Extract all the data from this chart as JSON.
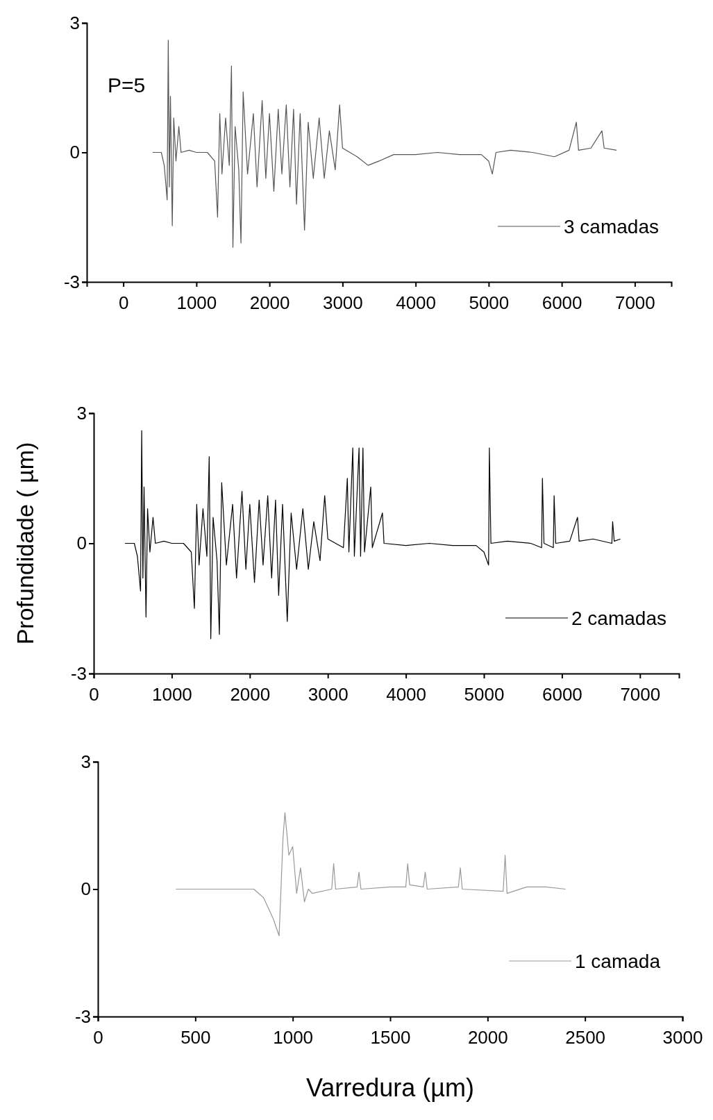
{
  "chart_data": [
    {
      "type": "line",
      "annotations": [
        "P=5"
      ],
      "xlim": [
        -500,
        7500
      ],
      "xticks": [
        0,
        1000,
        2000,
        3000,
        4000,
        5000,
        6000,
        7000
      ],
      "ylim": [
        -3,
        3
      ],
      "yticks": [
        -3,
        0,
        3
      ],
      "legend": "bottom right",
      "grid": false,
      "series": [
        {
          "name": "3 camadas",
          "color": "#555555",
          "x": [
            400,
            520,
            560,
            600,
            615,
            630,
            645,
            670,
            690,
            720,
            760,
            790,
            900,
            1000,
            1150,
            1250,
            1290,
            1320,
            1350,
            1400,
            1450,
            1480,
            1500,
            1530,
            1580,
            1610,
            1640,
            1700,
            1780,
            1830,
            1900,
            1950,
            2000,
            2060,
            2120,
            2170,
            2230,
            2280,
            2330,
            2370,
            2420,
            2480,
            2530,
            2600,
            2680,
            2750,
            2820,
            2900,
            2960,
            3000,
            3100,
            3200,
            3350,
            3500,
            3700,
            4000,
            4300,
            4600,
            4900,
            5000,
            5050,
            5100,
            5300,
            5600,
            5900,
            6100,
            6200,
            6230,
            6400,
            6550,
            6580,
            6750
          ],
          "values": [
            0,
            0,
            -0.3,
            -1.1,
            2.6,
            -0.8,
            1.3,
            -1.7,
            0.8,
            -0.2,
            0.6,
            0,
            0.05,
            0,
            0,
            -0.2,
            -1.5,
            0.9,
            -0.5,
            0.8,
            -0.3,
            2.0,
            -2.2,
            0.6,
            -0.4,
            -2.1,
            1.4,
            -0.5,
            0.9,
            -0.8,
            1.2,
            -0.6,
            0.9,
            -0.9,
            1.0,
            -0.5,
            1.1,
            -0.8,
            1.0,
            -1.2,
            0.9,
            -1.8,
            0.7,
            -0.6,
            0.8,
            -0.6,
            0.5,
            -0.4,
            1.1,
            0.1,
            0,
            -0.1,
            -0.3,
            -0.2,
            -0.05,
            -0.05,
            0,
            -0.05,
            -0.05,
            -0.2,
            -0.5,
            0,
            0.05,
            0,
            -0.1,
            0.05,
            0.7,
            0.05,
            0.1,
            0.5,
            0.1,
            0.05
          ]
        }
      ]
    },
    {
      "type": "line",
      "ylabel": "Profundidade ( µm)",
      "xlim": [
        0,
        7500
      ],
      "xticks": [
        0,
        1000,
        2000,
        3000,
        4000,
        5000,
        6000,
        7000
      ],
      "ylim": [
        -3,
        3
      ],
      "yticks": [
        -3,
        0,
        3
      ],
      "legend": "bottom right",
      "grid": false,
      "series": [
        {
          "name": "2 camadas",
          "color": "#000000",
          "x": [
            400,
            520,
            560,
            600,
            615,
            630,
            645,
            670,
            690,
            720,
            760,
            790,
            900,
            1000,
            1150,
            1250,
            1290,
            1320,
            1350,
            1400,
            1450,
            1480,
            1500,
            1530,
            1580,
            1610,
            1640,
            1700,
            1780,
            1830,
            1900,
            1950,
            2000,
            2060,
            2120,
            2170,
            2230,
            2280,
            2330,
            2370,
            2420,
            2480,
            2530,
            2600,
            2680,
            2750,
            2820,
            2900,
            2960,
            3000,
            3100,
            3200,
            3250,
            3270,
            3320,
            3340,
            3400,
            3420,
            3450,
            3470,
            3550,
            3570,
            3700,
            3720,
            4000,
            4300,
            4600,
            4900,
            5000,
            5060,
            5070,
            5090,
            5300,
            5600,
            5740,
            5750,
            5770,
            5890,
            5900,
            5920,
            6100,
            6200,
            6220,
            6400,
            6640,
            6650,
            6670,
            6750
          ],
          "values": [
            0,
            0,
            -0.3,
            -1.1,
            2.6,
            -0.8,
            1.3,
            -1.7,
            0.8,
            -0.2,
            0.6,
            0,
            0.05,
            0,
            0,
            -0.2,
            -1.5,
            0.9,
            -0.5,
            0.8,
            -0.3,
            2.0,
            -2.2,
            0.6,
            -0.4,
            -2.1,
            1.4,
            -0.5,
            0.9,
            -0.8,
            1.2,
            -0.6,
            0.9,
            -0.9,
            1.0,
            -0.5,
            1.1,
            -0.8,
            1.0,
            -1.2,
            0.9,
            -1.8,
            0.7,
            -0.6,
            0.8,
            -0.6,
            0.5,
            -0.4,
            1.1,
            0.1,
            0,
            -0.1,
            1.5,
            -0.2,
            2.2,
            -0.3,
            2.2,
            -0.3,
            2.2,
            -0.2,
            1.3,
            -0.1,
            0.7,
            0,
            -0.05,
            0,
            -0.05,
            -0.05,
            -0.2,
            -0.5,
            2.2,
            0,
            0.05,
            0,
            -0.1,
            1.5,
            0,
            -0.1,
            1.1,
            0,
            0.05,
            0.6,
            0.05,
            0.1,
            0,
            0.5,
            0.05,
            0.1
          ]
        }
      ]
    },
    {
      "type": "line",
      "xlabel": "Varredura (µm)",
      "xlim": [
        0,
        3000
      ],
      "xticks": [
        0,
        500,
        1000,
        1500,
        2000,
        2500,
        3000
      ],
      "ylim": [
        -3,
        3
      ],
      "yticks": [
        -3,
        0,
        3
      ],
      "legend": "bottom right",
      "grid": false,
      "series": [
        {
          "name": "1 camada",
          "color": "#999999",
          "x": [
            400,
            800,
            850,
            900,
            930,
            950,
            960,
            980,
            1000,
            1020,
            1040,
            1060,
            1080,
            1100,
            1200,
            1210,
            1220,
            1330,
            1340,
            1350,
            1500,
            1580,
            1590,
            1600,
            1670,
            1680,
            1690,
            1850,
            1860,
            1870,
            2080,
            2090,
            2100,
            2200,
            2300,
            2400
          ],
          "values": [
            0,
            0,
            -0.2,
            -0.7,
            -1.1,
            1.2,
            1.8,
            0.8,
            1.0,
            -0.1,
            0.5,
            -0.3,
            0,
            -0.1,
            0,
            0.6,
            0,
            0.05,
            0.4,
            0,
            0.05,
            0.05,
            0.6,
            0.1,
            0.05,
            0.4,
            0,
            0.05,
            0.5,
            0,
            -0.05,
            0.8,
            -0.1,
            0.05,
            0.05,
            0
          ]
        }
      ]
    }
  ]
}
